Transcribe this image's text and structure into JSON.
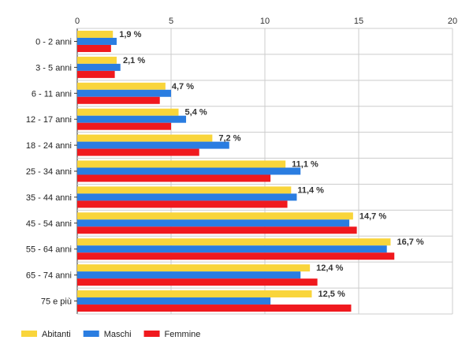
{
  "chart_data": {
    "type": "bar",
    "orientation": "horizontal",
    "categories": [
      "0 - 2 anni",
      "3 - 5 anni",
      "6 - 11 anni",
      "12 - 17 anni",
      "18 - 24 anni",
      "25 - 34 anni",
      "35 - 44 anni",
      "45 - 54 anni",
      "55 - 64 anni",
      "65 - 74 anni",
      "75 e più"
    ],
    "series": [
      {
        "name": "Abitanti",
        "color": "#f9d53b",
        "values": [
          1.9,
          2.1,
          4.7,
          5.4,
          7.2,
          11.1,
          11.4,
          14.7,
          16.7,
          12.4,
          12.5
        ]
      },
      {
        "name": "Maschi",
        "color": "#2a7de1",
        "values": [
          2.1,
          2.3,
          5.0,
          5.8,
          8.1,
          11.9,
          11.7,
          14.5,
          16.5,
          11.9,
          10.3
        ]
      },
      {
        "name": "Femmine",
        "color": "#f0191e",
        "values": [
          1.8,
          2.0,
          4.4,
          5.0,
          6.5,
          10.3,
          11.2,
          14.9,
          16.9,
          12.8,
          14.6
        ]
      }
    ],
    "data_labels": [
      "1,9 %",
      "2,1 %",
      "4,7 %",
      "5,4 %",
      "7,2 %",
      "11,1 %",
      "11,4 %",
      "14,7 %",
      "16,7 %",
      "12,4 %",
      "12,5 %"
    ],
    "xlim": [
      0,
      20
    ],
    "xticks": [
      0,
      5,
      10,
      15,
      20
    ],
    "xtick_labels": [
      "0",
      "5",
      "10",
      "15",
      "20"
    ],
    "axis_position": "top",
    "grid": true,
    "legend_position": "bottom-left",
    "title": "",
    "xlabel": "",
    "ylabel": ""
  }
}
